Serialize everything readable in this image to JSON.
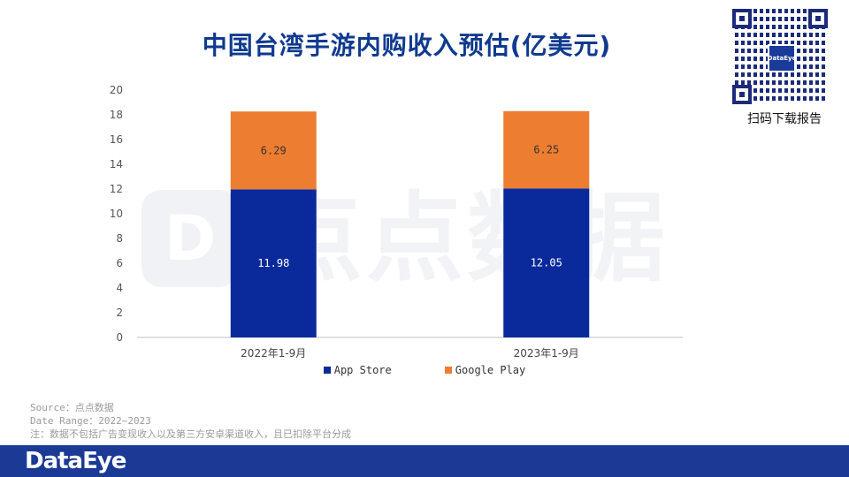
{
  "title": "中国台湾手游内购收入预估(亿美元)",
  "qr": {
    "logo_text": "DataEye",
    "caption": "扫码下载报告"
  },
  "watermark": {
    "text": "点点数据"
  },
  "colors": {
    "app_store": "#0a2a9c",
    "google_play": "#ed7d31",
    "title": "#0f3a8f",
    "footer": "#1b3a96"
  },
  "chart_data": {
    "type": "bar",
    "stacked": true,
    "title": "中国台湾手游内购收入预估(亿美元)",
    "categories": [
      "2022年1-9月",
      "2023年1-9月"
    ],
    "series": [
      {
        "name": "App Store",
        "values": [
          11.98,
          12.05
        ],
        "labels": [
          "11.98",
          "12.05"
        ],
        "color": "#0a2a9c"
      },
      {
        "name": "Google Play",
        "values": [
          6.29,
          6.25
        ],
        "labels": [
          "6.29",
          "6.25"
        ],
        "color": "#ed7d31"
      }
    ],
    "ylim": [
      0,
      20
    ],
    "yticks": [
      0,
      2,
      4,
      6,
      8,
      10,
      12,
      14,
      16,
      18,
      20
    ],
    "legend_position": "bottom",
    "grid": false
  },
  "notes": {
    "source": "Source：点点数据",
    "date_range": "Date Range：2022~2023",
    "note": "注：数据不包括广告变现收入以及第三方安卓渠道收入，且已扣除平台分成"
  },
  "footer": {
    "brand": "DataEye"
  }
}
